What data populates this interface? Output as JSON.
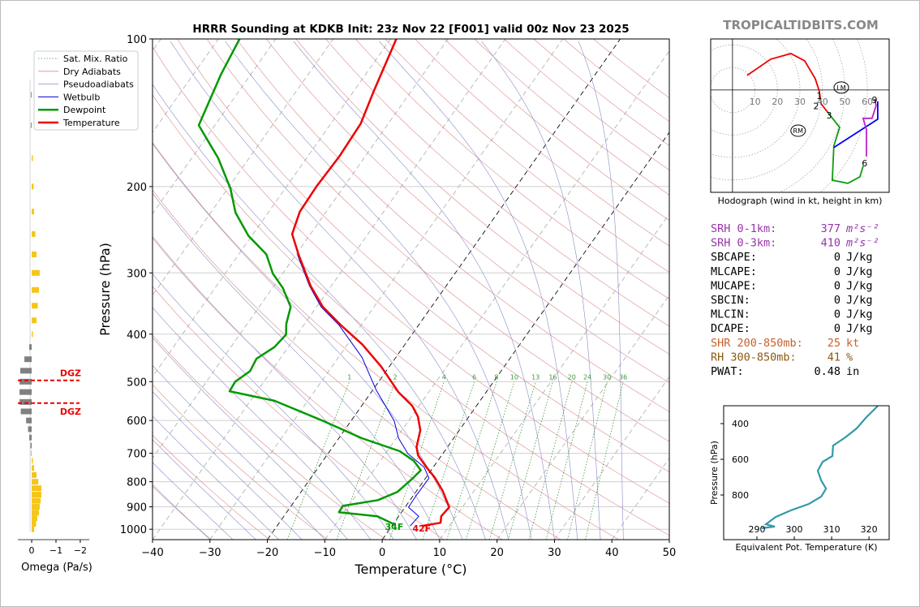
{
  "brand": "TROPICALTIDBITS.COM",
  "chart_data": [
    {
      "type": "skewt",
      "title": "HRRR Sounding at KDKB Init: 23z Nov 22 [F001] valid 00z Nov 23 2025",
      "xlabel": "Temperature (°C)",
      "ylabel": "Pressure (hPa)",
      "xlim": [
        -40,
        50
      ],
      "ylim": [
        1050,
        100
      ],
      "xticks": [
        {
          "value": -40,
          "label": "−40"
        },
        {
          "value": -30,
          "label": "−30"
        },
        {
          "value": -20,
          "label": "−20"
        },
        {
          "value": -10,
          "label": "−10"
        },
        0,
        10,
        20,
        30,
        40,
        50
      ],
      "yticks": [
        100,
        200,
        300,
        400,
        500,
        600,
        700,
        800,
        900,
        1000
      ],
      "log_scale": true,
      "grid": true,
      "legend": "upper-left",
      "highlight_isotherms": [
        -20,
        0
      ],
      "mixing_ratio": [
        1,
        2,
        4,
        6,
        8,
        10,
        13,
        16,
        20,
        24,
        30,
        36
      ],
      "background": [
        {
          "name": "Sat. Mix. Ratio",
          "color": "#3a9a3a",
          "dash": "dotted"
        },
        {
          "name": "Dry Adiabats",
          "color": "#d98a8a",
          "dash": "solid"
        },
        {
          "name": "Pseudoadiabats",
          "color": "#8a8ac8",
          "dash": "solid"
        }
      ],
      "series": [
        {
          "name": "Wetbulb",
          "color": "#0000dd",
          "width": 1,
          "pressure": [
            985,
            941,
            902,
            855,
            787,
            747,
            701,
            652,
            601,
            519,
            446,
            383,
            352,
            319,
            275
          ],
          "values": [
            3.2,
            3.5,
            0.6,
            0.5,
            0.6,
            -1.6,
            -6.1,
            -9.6,
            -12.5,
            -19.5,
            -25.9,
            -33.9,
            -39.2,
            -43.8,
            -49.8
          ]
        },
        {
          "name": "Dewpoint",
          "color": "#009900",
          "width": 2.5,
          "surface_label": "34F",
          "pressure": [
            977,
            941,
            923,
            896,
            872,
            839,
            787,
            758,
            725,
            693,
            652,
            601,
            547,
            523,
            500,
            476,
            449,
            425,
            401,
            381,
            352,
            322,
            301,
            275,
            252,
            226,
            202,
            175,
            150,
            118,
            100
          ],
          "values": [
            0.2,
            -3.7,
            -10.9,
            -11,
            -5.6,
            -3.2,
            -2.2,
            -1.8,
            -4.2,
            -7.8,
            -16,
            -24.9,
            -35.8,
            -44.8,
            -45,
            -43.7,
            -44.1,
            -42.4,
            -41.9,
            -43.2,
            -44.5,
            -48.2,
            -51.7,
            -55.2,
            -60.6,
            -65.7,
            -69.5,
            -75.4,
            -82.8,
            -85.2,
            -86.3
          ]
        },
        {
          "name": "Temperature",
          "color": "#ee0000",
          "width": 2.5,
          "surface_label": "42F",
          "pressure": [
            985,
            970,
            941,
            902,
            836,
            784,
            747,
            707,
            679,
            628,
            589,
            560,
            525,
            466,
            420,
            383,
            352,
            319,
            275,
            250,
            225,
            200,
            174,
            149,
            128,
            100
          ],
          "values": [
            5.2,
            8.1,
            7.4,
            7.7,
            4.6,
            1.5,
            -1.2,
            -4.1,
            -5.4,
            -6.8,
            -8.9,
            -11.2,
            -15.3,
            -21.4,
            -27.4,
            -33.6,
            -38.9,
            -43.6,
            -49.6,
            -53.2,
            -54.6,
            -54.8,
            -54.5,
            -54.8,
            -56.5,
            -59
          ]
        }
      ]
    },
    {
      "type": "omega",
      "xlabel": "Omega (Pa/s)",
      "xlim": [
        0.57,
        -2.37
      ],
      "ylim": [
        1050,
        100
      ],
      "xticks": [
        0,
        {
          "value": -1,
          "label": "−1"
        },
        {
          "value": -2,
          "label": "−2"
        }
      ],
      "colors": {
        "positive": "#808080",
        "negative": "#f5c518"
      },
      "pressure": [
        130,
        150,
        175,
        200,
        225,
        250,
        275,
        300,
        325,
        350,
        375,
        400,
        425,
        450,
        475,
        500,
        525,
        550,
        575,
        600,
        625,
        650,
        675,
        700,
        725,
        750,
        775,
        800,
        825,
        850,
        875,
        900,
        925,
        950,
        975,
        1000
      ],
      "values": [
        0.03,
        0.03,
        -0.05,
        -0.08,
        -0.1,
        -0.15,
        -0.2,
        -0.33,
        -0.3,
        -0.25,
        -0.2,
        -0.05,
        0.1,
        0.3,
        0.47,
        0.5,
        0.5,
        0.5,
        0.45,
        0.23,
        0.15,
        0.1,
        0.05,
        0.02,
        -0.05,
        -0.1,
        -0.2,
        -0.27,
        -0.4,
        -0.4,
        -0.37,
        -0.33,
        -0.3,
        -0.23,
        -0.18,
        -0.1
      ],
      "dgz": [
        {
          "label": "DGZ",
          "pressure": 497
        },
        {
          "label": "DGZ",
          "pressure": 553
        }
      ],
      "dgz_color": "#ee0000"
    },
    {
      "type": "hodograph",
      "caption": "Hodograph (wind in kt, height in km)",
      "xlim": [
        -9.7,
        69.7
      ],
      "ylim": [
        -45.5,
        22.7
      ],
      "ring_labels": [
        10,
        20,
        30,
        40,
        50,
        60
      ],
      "series": [
        {
          "color": "#ee0000",
          "u": [
            6.5,
            17.0,
            26.0,
            32.1,
            36.8,
            38.6,
            39.4,
            42.2
          ],
          "v": [
            6.5,
            13.7,
            16.2,
            13.0,
            5.1,
            -0.4,
            -6.1,
            -9.7
          ]
        },
        {
          "color": "#119911",
          "u": [
            42.2,
            47.7,
            45.1,
            44.4,
            51.3,
            56.7,
            58.1
          ],
          "v": [
            -9.7,
            -16.6,
            -24.9,
            -40.1,
            -41.5,
            -38.6,
            -33.9
          ]
        },
        {
          "color": "#0000ee",
          "u": [
            45.1,
            64.6,
            64.6
          ],
          "v": [
            -25.6,
            -13.0,
            -5.1
          ]
        },
        {
          "color": "#bb22cc",
          "u": [
            59.6,
            59.6,
            58.1,
            62.1,
            63.9,
            63.2
          ],
          "v": [
            -29.6,
            -17.7,
            -12.6,
            -12.6,
            -6.9,
            -4.0
          ]
        }
      ],
      "height_labels": [
        {
          "km": 1,
          "u": 38.6,
          "v": -2.5
        },
        {
          "km": 2,
          "u": 37.2,
          "v": -7.0
        },
        {
          "km": 3,
          "u": 43.0,
          "v": -11.2
        },
        {
          "km": 6,
          "u": 58.8,
          "v": -32.5
        },
        {
          "km": 9,
          "u": 63.2,
          "v": -4.3
        }
      ],
      "markers": [
        {
          "label": "LM",
          "u": 48.4,
          "v": 1.1
        },
        {
          "label": "RM",
          "u": 29.2,
          "v": -18.1
        }
      ]
    },
    {
      "type": "line",
      "xlabel": "Equivalent Pot. Temperature (K)",
      "ylabel": "Pressure (hPa)",
      "xlim": [
        281.1,
        325.4
      ],
      "ylim": [
        1050,
        300
      ],
      "xticks": [
        290,
        300,
        310,
        320
      ],
      "yticks": [
        400,
        600,
        800
      ],
      "color": "#3399aa",
      "pressure": [
        986,
        977,
        964,
        923,
        886,
        850,
        809,
        764,
        718,
        664,
        614,
        582,
        523,
        477,
        427,
        364,
        300
      ],
      "values": [
        291.3,
        294.8,
        292.4,
        295.0,
        299.1,
        303.9,
        307.2,
        308.5,
        307.2,
        306.3,
        307.6,
        310.2,
        310.4,
        313.7,
        316.7,
        319.3,
        322.4
      ]
    }
  ],
  "stats": [
    {
      "label": "SRH 0-1km:",
      "value": 377,
      "unit": "m²s⁻²",
      "color": "#9933aa"
    },
    {
      "label": "SRH 0-3km:",
      "value": 410,
      "unit": "m²s⁻²",
      "color": "#9933aa"
    },
    {
      "label": "SBCAPE:",
      "value": 0,
      "unit": "J/kg",
      "color": "#000000"
    },
    {
      "label": "MLCAPE:",
      "value": 0,
      "unit": "J/kg",
      "color": "#000000"
    },
    {
      "label": "MUCAPE:",
      "value": 0,
      "unit": "J/kg",
      "color": "#000000"
    },
    {
      "label": "SBCIN:",
      "value": 0,
      "unit": "J/kg",
      "color": "#000000"
    },
    {
      "label": "MLCIN:",
      "value": 0,
      "unit": "J/kg",
      "color": "#000000"
    },
    {
      "label": "DCAPE:",
      "value": 0,
      "unit": "J/kg",
      "color": "#000000"
    },
    {
      "label": "SHR 200-850mb:",
      "value": 25,
      "unit": "kt",
      "color": "#c8602a"
    },
    {
      "label": "RH 300-850mb:",
      "value": 41,
      "unit": "%",
      "color": "#8a5a10"
    },
    {
      "label": "PWAT:",
      "value": 0.48,
      "unit": "in",
      "color": "#000000"
    }
  ]
}
